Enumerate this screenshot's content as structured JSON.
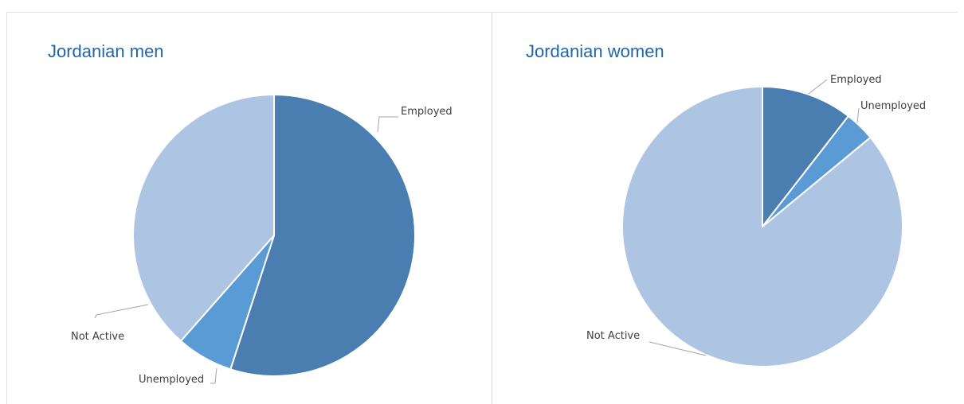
{
  "chart_data": [
    {
      "type": "pie",
      "title": "Jordanian men",
      "categories": [
        "Employed",
        "Unemployed",
        "Not Active"
      ],
      "values": [
        55,
        6.5,
        38.5
      ],
      "colors": [
        "#4a7eb1",
        "#5b9bd5",
        "#adc5e3"
      ]
    },
    {
      "type": "pie",
      "title": "Jordanian women",
      "categories": [
        "Employed",
        "Unemployed",
        "Not Active"
      ],
      "values": [
        10.5,
        3.5,
        86
      ],
      "colors": [
        "#4a7eb1",
        "#5b9bd5",
        "#adc5e3"
      ]
    }
  ]
}
